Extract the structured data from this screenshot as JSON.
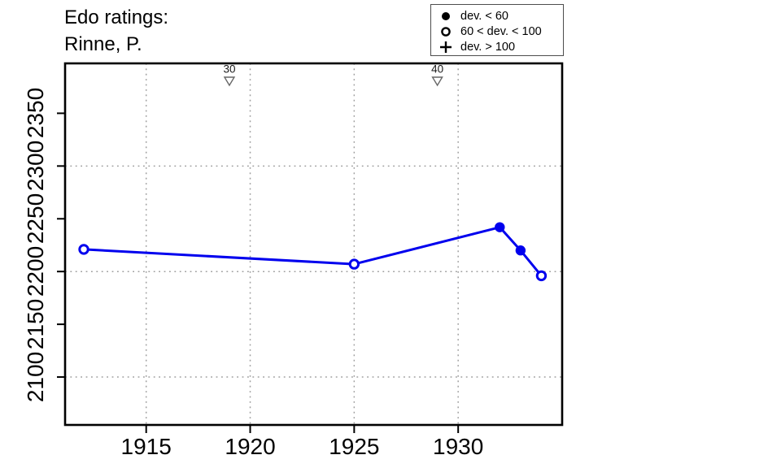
{
  "title": {
    "line1": "Edo ratings:",
    "line2": "Rinne, P."
  },
  "legend": {
    "items": [
      {
        "symbol": "filled-circle",
        "label": "dev. < 60"
      },
      {
        "symbol": "open-circle",
        "label": "60 < dev. < 100"
      },
      {
        "symbol": "plus",
        "label": "dev. > 100"
      }
    ]
  },
  "chart_data": {
    "type": "line",
    "title": "Edo ratings: Rinne, P.",
    "xlabel": "",
    "ylabel": "",
    "x": [
      1912,
      1925,
      1932,
      1933,
      1934
    ],
    "series": [
      {
        "name": "Edo rating",
        "values": [
          2221,
          2207,
          2242,
          2220,
          2196
        ],
        "point_styles": [
          "open",
          "open",
          "filled",
          "filled",
          "open"
        ],
        "point_style_meaning": {
          "filled": "dev. < 60",
          "open": "60 < dev. < 100",
          "plus": "dev. > 100"
        }
      }
    ],
    "events": [
      {
        "x": 1919,
        "label": "30",
        "marker": "open-triangle-down"
      },
      {
        "x": 1929,
        "label": "40",
        "marker": "open-triangle-down"
      }
    ],
    "xticks": [
      1915,
      1920,
      1925,
      1930
    ],
    "yticks": [
      2100,
      2150,
      2200,
      2250,
      2300,
      2350
    ],
    "xlim": [
      1911.1,
      1935.0
    ],
    "ylim": [
      2054.6,
      2397.3
    ],
    "grid": {
      "style": "dotted",
      "vertical_at": [
        1915,
        1920,
        1925,
        1930
      ],
      "horizontal_at": [
        2100,
        2200,
        2300
      ]
    },
    "legend_position": "top-right",
    "colors": {
      "line": "#0000EE",
      "grid": "#9E9E9E",
      "axis": "#000000",
      "triangle_outline": "#666666",
      "background": "#FFFFFF"
    }
  }
}
